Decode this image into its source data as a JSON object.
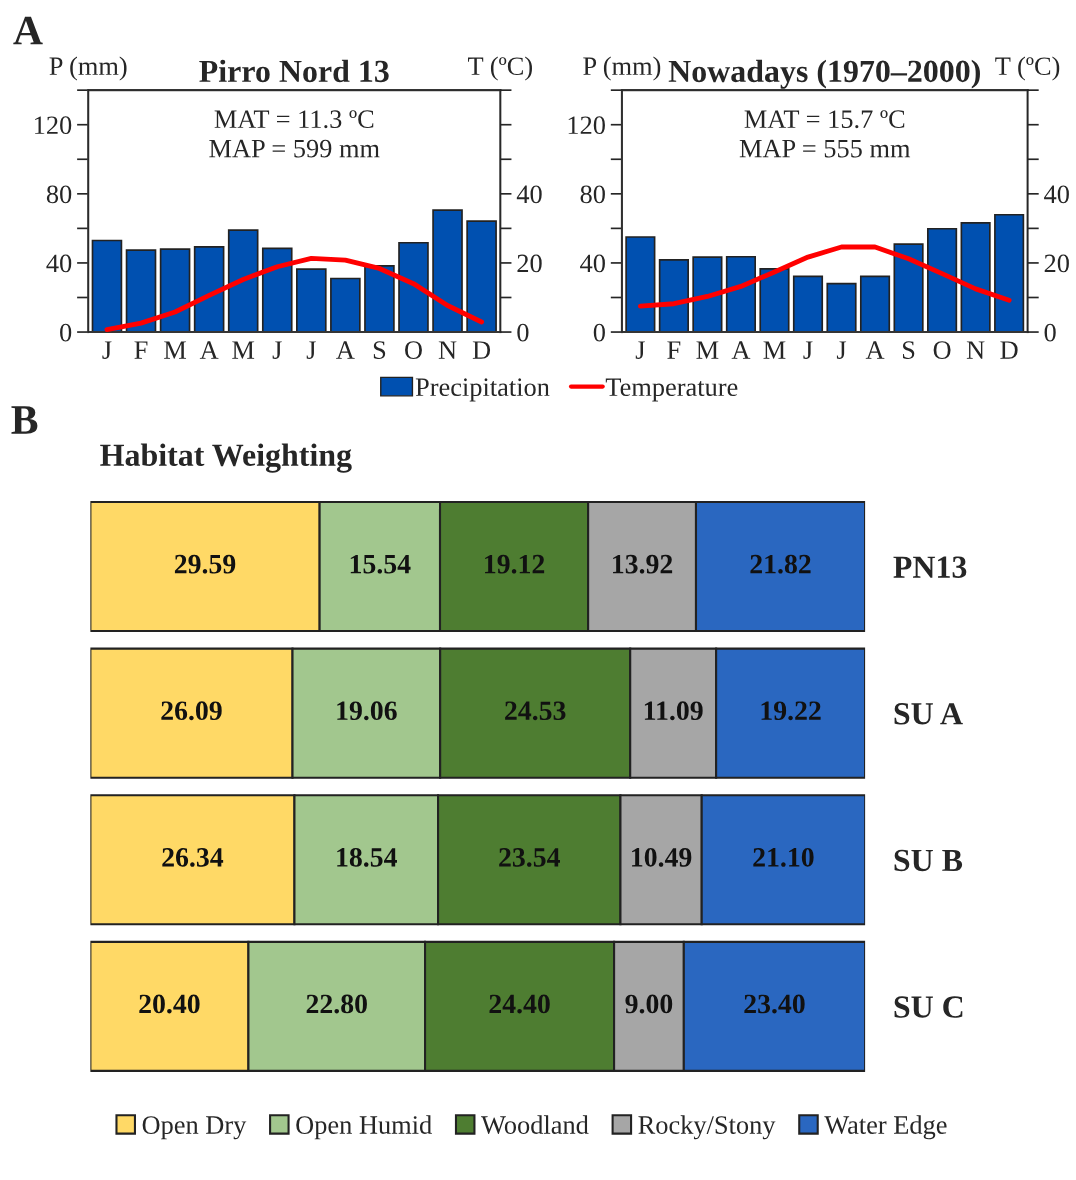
{
  "chart_data": [
    {
      "type": "bar",
      "title": "Pirro Nord 13",
      "ylabel": "P (mm)",
      "y2label": "T (ºC)",
      "annotations": [
        "A",
        "MAT = 11.3 ºC\nMAP = 599 mm"
      ],
      "categories": [
        "J",
        "F",
        "M",
        "A",
        "M",
        "J",
        "J",
        "A",
        "S",
        "O",
        "N",
        "D"
      ],
      "series": [
        {
          "name": "Precipitation",
          "type": "bar",
          "color": "#0050b0",
          "values": [
            53,
            47.4,
            48,
            49.3,
            59,
            48.4,
            36.4,
            31,
            38.3,
            51.7,
            70.6,
            64.2
          ]
        },
        {
          "name": "Temperature",
          "type": "line",
          "axis": "y2",
          "color": "#ff0000",
          "values": [
            0.7,
            2.6,
            5.8,
            10.6,
            15.2,
            18.9,
            21.3,
            20.8,
            18.4,
            14,
            7.7,
            2.9
          ]
        }
      ],
      "ylim": [
        0,
        140
      ],
      "yticks": [
        0,
        {
          "value": 20,
          "label": null
        },
        40,
        {
          "value": 60,
          "label": null
        },
        80,
        {
          "value": 100,
          "label": null
        },
        120,
        {
          "value": 140,
          "label": null
        }
      ],
      "y2lim": [
        0,
        70
      ],
      "y2ticks": [
        0,
        {
          "value": 10,
          "label": null
        },
        20,
        {
          "value": 30,
          "label": null
        },
        40,
        {
          "value": 50,
          "label": null
        },
        {
          "value": 60,
          "label": null
        },
        {
          "value": 70,
          "label": null
        }
      ],
      "legend": "bottom"
    },
    {
      "type": "bar",
      "title": "Nowadays (1970–2000)",
      "ylabel": "P (mm)",
      "y2label": "T (ºC)",
      "annotations": [
        "MAT = 15.7 ºC\nMAP = 555 mm"
      ],
      "categories": [
        "J",
        "F",
        "M",
        "A",
        "M",
        "J",
        "J",
        "A",
        "S",
        "O",
        "N",
        "D"
      ],
      "series": [
        {
          "type": "bar",
          "color": "#0050b0",
          "values": [
            55,
            41.8,
            43.4,
            43.6,
            36.6,
            32.2,
            28,
            32.2,
            50.9,
            59.8,
            63.2,
            67.9
          ]
        },
        {
          "type": "line",
          "axis": "y2",
          "color": "#ff0000",
          "values": [
            7.5,
            8.2,
            10.3,
            13.2,
            17.4,
            21.7,
            24.6,
            24.6,
            21.2,
            16.9,
            12.5,
            9.2
          ]
        }
      ],
      "ylim": [
        0,
        140
      ],
      "yticks": [
        0,
        {
          "value": 20,
          "label": null
        },
        40,
        {
          "value": 60,
          "label": null
        },
        80,
        {
          "value": 100,
          "label": null
        },
        120,
        {
          "value": 140,
          "label": null
        }
      ],
      "y2lim": [
        0,
        70
      ],
      "y2ticks": [
        0,
        {
          "value": 10,
          "label": null
        },
        20,
        {
          "value": 30,
          "label": null
        },
        40,
        {
          "value": 50,
          "label": null
        },
        {
          "value": 60,
          "label": null
        },
        {
          "value": 70,
          "label": null
        }
      ]
    },
    {
      "type": "bar",
      "orientation": "horizontal",
      "stacked": true,
      "title": "Habitat Weighting",
      "annotations": [
        "B"
      ],
      "categories": [
        "PN13",
        "SU A",
        "SU B",
        "SU C"
      ],
      "series": [
        {
          "name": "Open Dry",
          "color": "#ffd966",
          "values": [
            29.59,
            26.09,
            26.34,
            20.4
          ],
          "value_labels": [
            "29.59",
            "26.09",
            "26.34",
            "20.40"
          ]
        },
        {
          "name": "Open Humid",
          "color": "#a2c78e",
          "values": [
            15.54,
            19.06,
            18.54,
            22.8
          ],
          "value_labels": [
            "15.54",
            "19.06",
            "18.54",
            "22.80"
          ]
        },
        {
          "name": "Woodland",
          "color": "#4e7d31",
          "values": [
            19.12,
            24.53,
            23.54,
            24.4
          ],
          "value_labels": [
            "19.12",
            "24.53",
            "23.54",
            "24.40"
          ]
        },
        {
          "name": "Rocky/Stony",
          "color": "#a6a6a6",
          "values": [
            13.92,
            11.09,
            10.49,
            9.0
          ],
          "value_labels": [
            "13.92",
            "11.09",
            "10.49",
            "9.00"
          ]
        },
        {
          "name": "Water Edge",
          "color": "#2a67c0",
          "values": [
            21.82,
            19.22,
            21.1,
            23.4
          ],
          "value_labels": [
            "21.82",
            "19.22",
            "21.10",
            "23.40"
          ]
        }
      ],
      "xlim": [
        0,
        100
      ],
      "tick_labels": false,
      "legend": "bottom"
    }
  ]
}
